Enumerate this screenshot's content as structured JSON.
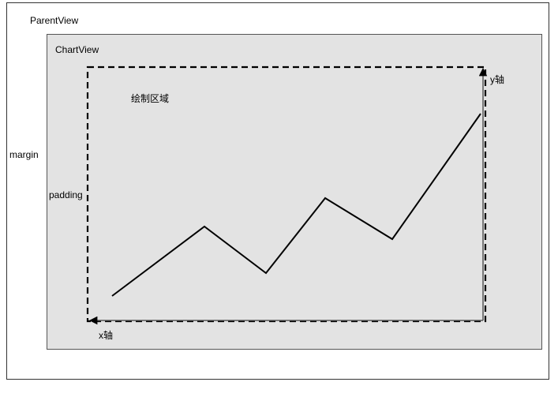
{
  "labels": {
    "parent_view": "ParentView",
    "chart_view": "ChartView",
    "margin": "margin",
    "padding": "padding",
    "drawing_area": "绘制区域",
    "x_axis": "x轴",
    "y_axis": "y轴"
  },
  "colors": {
    "chart_background": "#e3e3e3",
    "border": "#333333",
    "line": "#000000"
  }
}
